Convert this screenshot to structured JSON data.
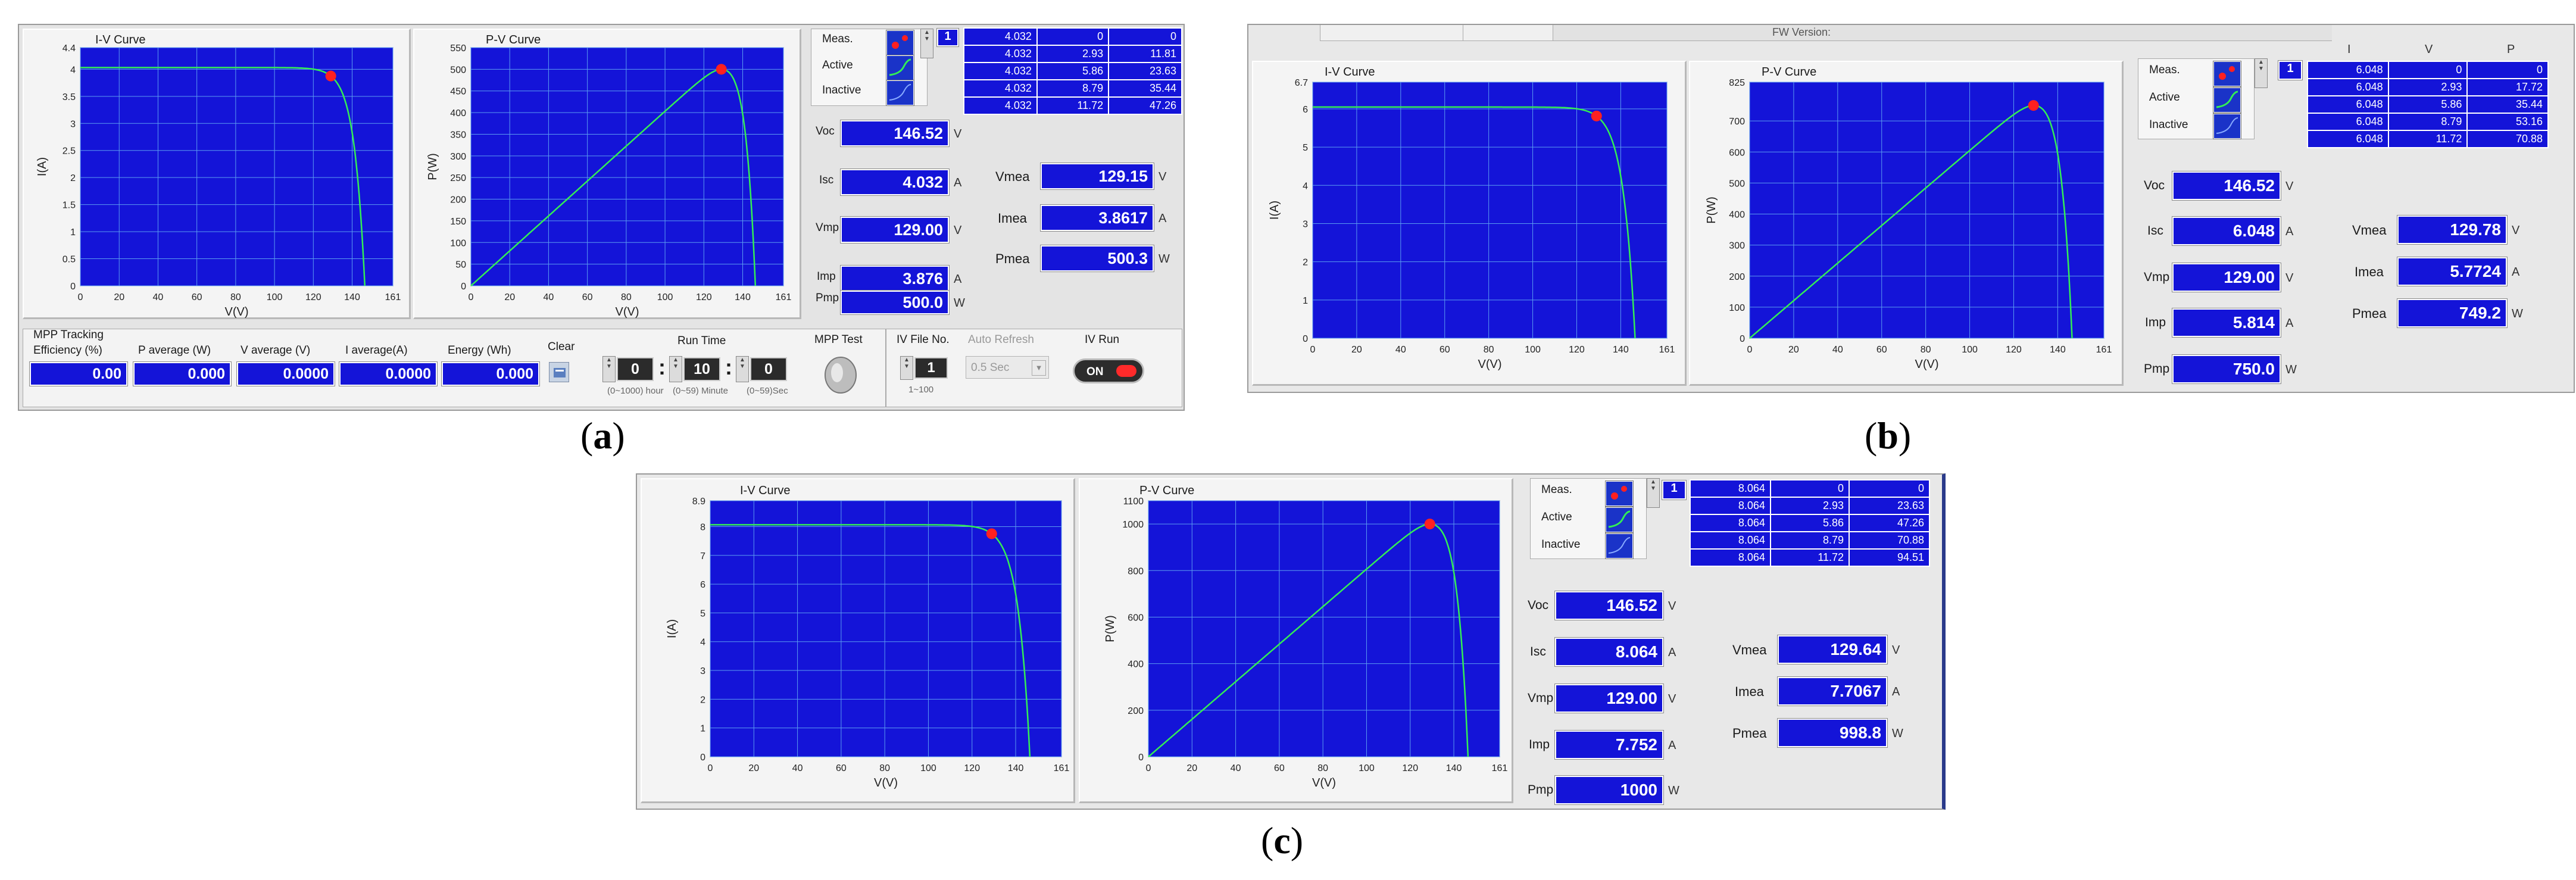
{
  "captions": {
    "a": "a",
    "b": "b",
    "c": "c"
  },
  "curve_titles": {
    "iv": "I-V Curve",
    "pv": "P-V Curve"
  },
  "axes": {
    "x": "V(V)",
    "iv_y": "I(A)",
    "pv_y": "P(W)"
  },
  "legend": {
    "meas": "Meas.",
    "active": "Active",
    "inactive": "Inactive",
    "index": "1"
  },
  "param_labels": {
    "voc": "Voc",
    "isc": "Isc",
    "vmp": "Vmp",
    "imp": "Imp",
    "pmp": "Pmp",
    "vmea": "Vmea",
    "imea": "Imea",
    "pmea": "Pmea"
  },
  "units": {
    "v": "V",
    "a": "A",
    "w": "W"
  },
  "table_headers": {
    "i": "I",
    "v": "V",
    "p": "P"
  },
  "colors": {
    "plot_bg": "#1414d8",
    "grid": "#5b9bf0",
    "curve": "#33ee55",
    "mpp": "#ff2020",
    "indicator": "#1414d8"
  },
  "panel_b_version": "FW Version: ",
  "panels": [
    {
      "id": "a",
      "voc": "146.52",
      "isc": "4.032",
      "vmp": "129.00",
      "imp": "3.876",
      "pmp": "500.0",
      "vmea": "129.15",
      "imea": "3.8617",
      "pmea": "500.3",
      "iv_ticks": [
        "0",
        "0.5",
        "1",
        "1.5",
        "2",
        "2.5",
        "3",
        "3.5",
        "4",
        "4.4"
      ],
      "pv_ticks": [
        "0",
        "50",
        "100",
        "150",
        "200",
        "250",
        "300",
        "350",
        "400",
        "450",
        "500",
        "550"
      ],
      "x_ticks": [
        "0",
        "20",
        "40",
        "60",
        "80",
        "100",
        "120",
        "140",
        "161"
      ],
      "table": [
        [
          "4.032",
          "0",
          "0"
        ],
        [
          "4.032",
          "2.93",
          "11.81"
        ],
        [
          "4.032",
          "5.86",
          "23.63"
        ],
        [
          "4.032",
          "8.79",
          "35.44"
        ],
        [
          "4.032",
          "11.72",
          "47.26"
        ]
      ],
      "chart_data": [
        {
          "type": "line",
          "title": "I-V Curve",
          "xlabel": "V(V)",
          "ylabel": "I(A)",
          "xlim": [
            0,
            161
          ],
          "ylim": [
            0,
            4.4
          ],
          "isc": 4.032,
          "voc": 146.52,
          "mpp": {
            "x": 129.0,
            "y": 3.876
          },
          "grid": true
        },
        {
          "type": "line",
          "title": "P-V Curve",
          "xlabel": "V(V)",
          "ylabel": "P(W)",
          "xlim": [
            0,
            161
          ],
          "ylim": [
            0,
            550
          ],
          "isc": 4.032,
          "voc": 146.52,
          "mpp": {
            "x": 129.0,
            "y": 500.0
          },
          "grid": true
        }
      ],
      "controls": {
        "mpp_tracking": "MPP Tracking",
        "efficiency": "Efficiency (%)",
        "p_average": "P average  (W)",
        "v_average": "V average (V)",
        "i_average": "I average(A)",
        "energy": "Energy  (Wh)",
        "clear": "Clear",
        "run_time": "Run Time",
        "mpp_test": "MPP Test",
        "iv_file_no": "IV File No.",
        "auto_refresh": "Auto Refresh",
        "iv_run": "IV Run",
        "eff_val": "0.00",
        "pavg_val": "0.000",
        "vavg_val": "0.0000",
        "iavg_val": "0.0000",
        "energy_val": "0.000",
        "hour_val": "0",
        "minute_val": "10",
        "sec_val": "0",
        "hour_hint": "(0~1000) hour",
        "minute_hint": "(0~59) Minute",
        "sec_hint": "(0~59)Sec",
        "file_no_val": "1",
        "file_no_hint": "1~100",
        "refresh_val": "0.5 Sec",
        "run_val": "ON"
      }
    },
    {
      "id": "b",
      "voc": "146.52",
      "isc": "6.048",
      "vmp": "129.00",
      "imp": "5.814",
      "pmp": "750.0",
      "vmea": "129.78",
      "imea": "5.7724",
      "pmea": "749.2",
      "iv_ticks": [
        "0",
        "1",
        "2",
        "3",
        "4",
        "5",
        "6",
        "6.7"
      ],
      "pv_ticks": [
        "0",
        "100",
        "200",
        "300",
        "400",
        "500",
        "600",
        "700",
        "825"
      ],
      "x_ticks": [
        "0",
        "20",
        "40",
        "60",
        "80",
        "100",
        "120",
        "140",
        "161"
      ],
      "table": [
        [
          "6.048",
          "0",
          "0"
        ],
        [
          "6.048",
          "2.93",
          "17.72"
        ],
        [
          "6.048",
          "5.86",
          "35.44"
        ],
        [
          "6.048",
          "8.79",
          "53.16"
        ],
        [
          "6.048",
          "11.72",
          "70.88"
        ]
      ],
      "chart_data": [
        {
          "type": "line",
          "title": "I-V Curve",
          "xlabel": "V(V)",
          "ylabel": "I(A)",
          "xlim": [
            0,
            161
          ],
          "ylim": [
            0,
            6.7
          ],
          "isc": 6.048,
          "voc": 146.52,
          "mpp": {
            "x": 129.0,
            "y": 5.814
          },
          "grid": true
        },
        {
          "type": "line",
          "title": "P-V Curve",
          "xlabel": "V(V)",
          "ylabel": "P(W)",
          "xlim": [
            0,
            161
          ],
          "ylim": [
            0,
            825
          ],
          "isc": 6.048,
          "voc": 146.52,
          "mpp": {
            "x": 129.0,
            "y": 750.0
          },
          "grid": true
        }
      ]
    },
    {
      "id": "c",
      "voc": "146.52",
      "isc": "8.064",
      "vmp": "129.00",
      "imp": "7.752",
      "pmp": "1000",
      "vmea": "129.64",
      "imea": "7.7067",
      "pmea": "998.8",
      "iv_ticks": [
        "0",
        "1",
        "2",
        "3",
        "4",
        "5",
        "6",
        "7",
        "8",
        "8.9"
      ],
      "pv_ticks": [
        "0",
        "200",
        "400",
        "600",
        "800",
        "1000",
        "1100"
      ],
      "x_ticks": [
        "0",
        "20",
        "40",
        "60",
        "80",
        "100",
        "120",
        "140",
        "161"
      ],
      "table": [
        [
          "8.064",
          "0",
          "0"
        ],
        [
          "8.064",
          "2.93",
          "23.63"
        ],
        [
          "8.064",
          "5.86",
          "47.26"
        ],
        [
          "8.064",
          "8.79",
          "70.88"
        ],
        [
          "8.064",
          "11.72",
          "94.51"
        ]
      ],
      "chart_data": [
        {
          "type": "line",
          "title": "I-V Curve",
          "xlabel": "V(V)",
          "ylabel": "I(A)",
          "xlim": [
            0,
            161
          ],
          "ylim": [
            0,
            8.9
          ],
          "isc": 8.064,
          "voc": 146.52,
          "mpp": {
            "x": 129.0,
            "y": 7.752
          },
          "grid": true
        },
        {
          "type": "line",
          "title": "P-V Curve",
          "xlabel": "V(V)",
          "ylabel": "P(W)",
          "xlim": [
            0,
            161
          ],
          "ylim": [
            0,
            1100
          ],
          "isc": 8.064,
          "voc": 146.52,
          "mpp": {
            "x": 129.0,
            "y": 1000.0
          },
          "grid": true
        }
      ]
    }
  ]
}
